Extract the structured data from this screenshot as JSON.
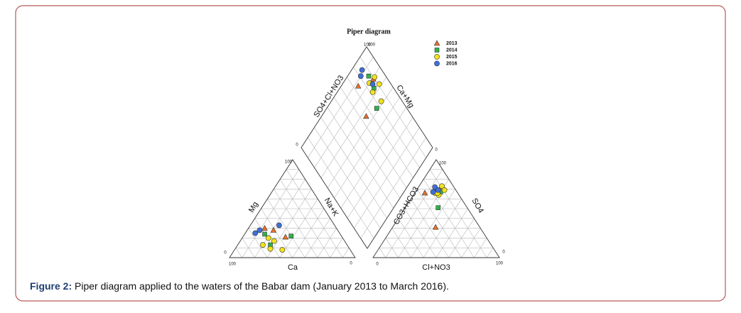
{
  "chart_data": {
    "type": "piper",
    "title": "Piper diagram",
    "caption_label": "Figure 2:",
    "caption": "Piper diagram applied to the waters of the Babar dam (January 2013 to March 2016).",
    "axes": {
      "ca": {
        "label": "Ca",
        "lim": [
          100,
          0
        ]
      },
      "mg": {
        "label": "Mg",
        "lim": [
          0,
          100
        ]
      },
      "nak": {
        "label": "Na+K"
      },
      "cl": {
        "label": "Cl+NO3",
        "lim": [
          0,
          100
        ]
      },
      "so4": {
        "label": "SO4",
        "lim": [
          0,
          100
        ]
      },
      "co3": {
        "label": "CO3+HCO3"
      },
      "d_anion": {
        "label": "SO4+Cl+NO3",
        "lim": [
          0,
          100
        ]
      },
      "d_cation": {
        "label": "Ca+Mg",
        "lim": [
          0,
          100
        ]
      }
    },
    "series": [
      {
        "name": "2013",
        "color": "#e8712b",
        "marker": "triangle",
        "mg": [
          30,
          21,
          28
        ],
        "nak": [
          13,
          34,
          21
        ],
        "so4": [
          66,
          31,
          71
        ],
        "cl": [
          8,
          34,
          18
        ]
      },
      {
        "name": "2014",
        "color": "#2db34a",
        "marker": "square",
        "mg": [
          22,
          13,
          24
        ],
        "nak": [
          38,
          26,
          16
        ],
        "so4": [
          51,
          69,
          67
        ],
        "cl": [
          26,
          16,
          20
        ]
      },
      {
        "name": "2015",
        "color": "#f2e21a",
        "marker": "circle",
        "mg": [
          9,
          8,
          20,
          17,
          13
        ],
        "nak": [
          28,
          38,
          21,
          27,
          20
        ],
        "so4": [
          73,
          64,
          69,
          66,
          66
        ],
        "cl": [
          18,
          20,
          22,
          16,
          18
        ]
      },
      {
        "name": "2016",
        "color": "#3f6fd8",
        "marker": "circle",
        "mg": [
          25,
          33,
          28
        ],
        "nak": [
          8,
          23,
          10
        ],
        "so4": [
          72,
          69,
          67
        ],
        "cl": [
          13,
          17,
          14
        ]
      }
    ]
  }
}
